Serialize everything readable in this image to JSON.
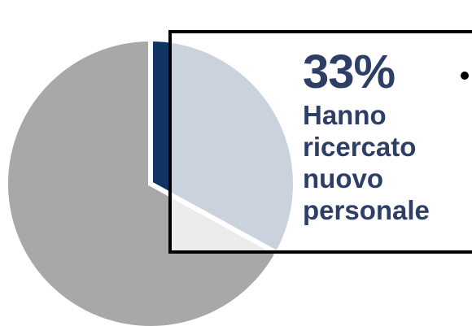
{
  "chart_data": {
    "type": "pie",
    "slices": [
      {
        "value": 33,
        "color": "#0f3464"
      },
      {
        "value": 67,
        "color": "#a8a8a8"
      }
    ],
    "start_angle_deg": 0
  },
  "callout": {
    "value": "33%",
    "caption": "Hanno\nricercato\nnuovo\npersonale"
  }
}
